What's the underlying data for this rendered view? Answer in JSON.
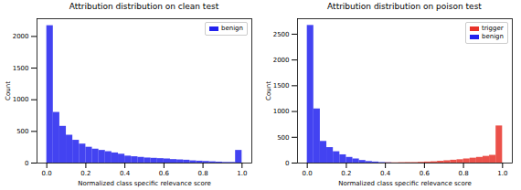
{
  "chart_data": [
    {
      "type": "histogram",
      "title": "Attribution distribution on clean test",
      "x_label": "Normalized class specific relevance score",
      "y_label": "Count",
      "bins": [
        0,
        0.0333,
        0.0667,
        0.1,
        0.1333,
        0.1667,
        0.2,
        0.2333,
        0.2667,
        0.3,
        0.3333,
        0.3667,
        0.4,
        0.4333,
        0.4667,
        0.5,
        0.5333,
        0.5667,
        0.6,
        0.6333,
        0.6667,
        0.7,
        0.7333,
        0.7667,
        0.8,
        0.8333,
        0.8667,
        0.9,
        0.9333,
        0.9667,
        1
      ],
      "series": [
        {
          "name": "benign",
          "color": "#2222ee",
          "values": [
            2170,
            800,
            580,
            440,
            360,
            300,
            250,
            220,
            200,
            180,
            160,
            140,
            110,
            100,
            90,
            80,
            75,
            70,
            65,
            55,
            50,
            45,
            35,
            30,
            25,
            20,
            15,
            10,
            10,
            200
          ]
        }
      ],
      "xlim": [
        -0.05,
        1.05
      ],
      "xticks": [
        {
          "value": 0,
          "label": "0.0"
        },
        {
          "value": 0.2,
          "label": "0.2"
        },
        {
          "value": 0.4,
          "label": "0.4"
        },
        {
          "value": 0.6,
          "label": "0.6"
        },
        {
          "value": 0.8,
          "label": "0.8"
        },
        {
          "value": 1,
          "label": "1.0"
        }
      ],
      "ylim": [
        0,
        2280
      ],
      "yticks": [
        0,
        500,
        1000,
        1500,
        2000
      ],
      "legend": "upper right"
    },
    {
      "type": "histogram",
      "title": "Attribution distribution on poison test",
      "x_label": "Normalized class specific relevance score",
      "y_label": "Count",
      "bins": [
        0,
        0.0333,
        0.0667,
        0.1,
        0.1333,
        0.1667,
        0.2,
        0.2333,
        0.2667,
        0.3,
        0.3333,
        0.3667,
        0.4,
        0.4333,
        0.4667,
        0.5,
        0.5333,
        0.5667,
        0.6,
        0.6333,
        0.6667,
        0.7,
        0.7333,
        0.7667,
        0.8,
        0.8333,
        0.8667,
        0.9,
        0.9333,
        0.9667,
        1
      ],
      "series": [
        {
          "name": "trigger",
          "color": "#e8332a",
          "values": [
            0,
            0,
            0,
            0,
            0,
            0,
            0,
            0,
            0,
            0,
            0,
            0,
            5,
            5,
            8,
            10,
            10,
            15,
            20,
            25,
            35,
            45,
            55,
            65,
            80,
            95,
            110,
            130,
            150,
            720
          ]
        },
        {
          "name": "benign",
          "color": "#2222ee",
          "values": [
            2670,
            1050,
            420,
            300,
            220,
            160,
            110,
            80,
            50,
            30,
            20,
            10,
            5,
            0,
            0,
            0,
            0,
            0,
            0,
            0,
            0,
            0,
            0,
            0,
            0,
            0,
            0,
            0,
            0,
            0
          ]
        }
      ],
      "xlim": [
        -0.05,
        1.05
      ],
      "xticks": [
        {
          "value": 0,
          "label": "0.0"
        },
        {
          "value": 0.2,
          "label": "0.2"
        },
        {
          "value": 0.4,
          "label": "0.4"
        },
        {
          "value": 0.6,
          "label": "0.6"
        },
        {
          "value": 0.8,
          "label": "0.8"
        },
        {
          "value": 1,
          "label": "1.0"
        }
      ],
      "ylim": [
        0,
        2800
      ],
      "yticks": [
        0,
        500,
        1000,
        1500,
        2000,
        2500
      ],
      "legend": "upper right"
    }
  ]
}
